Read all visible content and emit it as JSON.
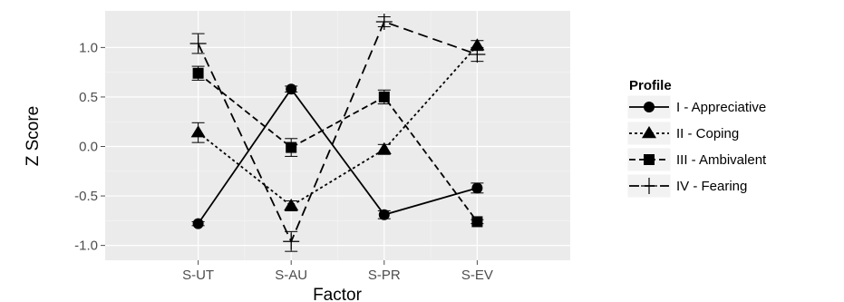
{
  "chart_data": {
    "type": "line",
    "xlabel": "Factor",
    "ylabel": "Z Score",
    "categories": [
      "S-UT",
      "S-AU",
      "S-PR",
      "S-EV"
    ],
    "ylim": [
      -1.15,
      1.37
    ],
    "yticks": [
      -1.0,
      -0.5,
      0.0,
      0.5,
      1.0
    ],
    "ytick_labels": [
      "-1.0",
      "-0.5",
      "0.0",
      "0.5",
      "1.0"
    ],
    "grid": true,
    "background": "#ebebeb",
    "legend": {
      "title": "Profile",
      "position": "right"
    },
    "series": [
      {
        "name": "I - Appreciative",
        "marker": "circle",
        "linestyle": "solid",
        "values": [
          -0.78,
          0.58,
          -0.69,
          -0.42
        ],
        "errors": [
          0.02,
          0.03,
          0.04,
          0.05
        ]
      },
      {
        "name": "II - Coping",
        "marker": "triangle",
        "linestyle": "dotted",
        "values": [
          0.14,
          -0.6,
          -0.03,
          1.02
        ],
        "errors": [
          0.1,
          0.05,
          0.05,
          0.05
        ]
      },
      {
        "name": "III - Ambivalent",
        "marker": "square",
        "linestyle": "dashed",
        "values": [
          0.74,
          -0.01,
          0.5,
          -0.76
        ],
        "errors": [
          0.07,
          0.09,
          0.07,
          0.02
        ]
      },
      {
        "name": "IV - Fearing",
        "marker": "cross",
        "linestyle": "longdash",
        "values": [
          1.04,
          -0.96,
          1.26,
          0.93
        ],
        "errors": [
          0.1,
          0.1,
          0.05,
          0.07
        ]
      }
    ]
  }
}
